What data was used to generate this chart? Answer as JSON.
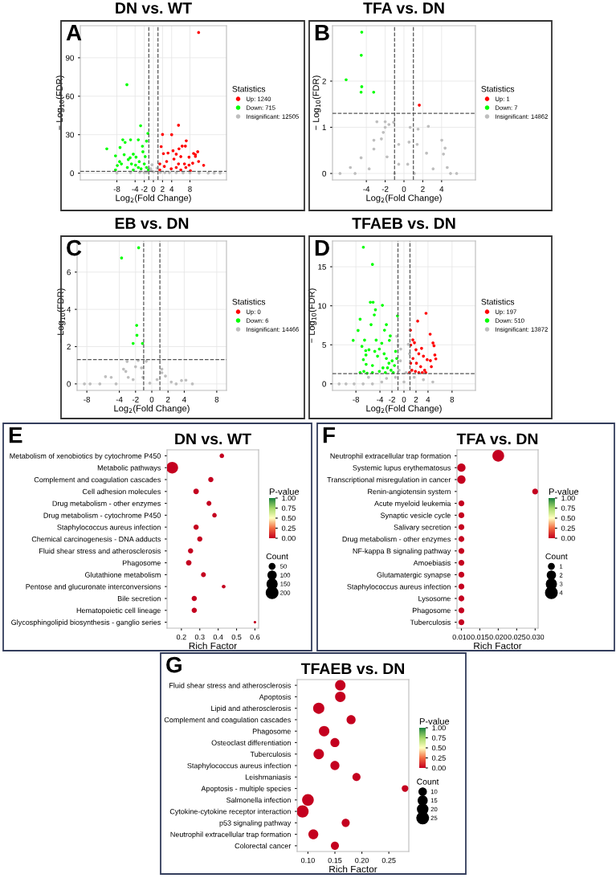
{
  "chart_data": [
    {
      "type": "scatter",
      "title": "DN vs. WT",
      "xlabel": "Log$_{2}$(Fold Change)",
      "ylabel": "− Log$_{10}$(FDR)",
      "legend_title": "Statistics",
      "legend": "right",
      "grid": true,
      "marker": "circle",
      "annotations": [
        "A"
      ],
      "xlim": [
        -16,
        16
      ],
      "ylim": [
        -5.3,
        115
      ],
      "xticks": [
        -8,
        -4,
        -2,
        0,
        2,
        4,
        8
      ],
      "yticks": [
        0,
        30,
        60,
        90
      ],
      "ref_lines": [
        {
          "axis": "x",
          "value": -1,
          "line_style": "dashed",
          "color": "#555555"
        },
        {
          "axis": "x",
          "value": 1,
          "line_style": "dashed",
          "color": "#555555"
        },
        {
          "axis": "y",
          "value": 1.3,
          "line_style": "dashed",
          "color": "#555555"
        }
      ],
      "series": [
        {
          "name": "Up: 1240",
          "color": "#ff0000",
          "x": [
            9.9,
            5.5,
            2.0,
            4.0,
            7.2,
            1.7,
            6.3,
            7.0,
            5.6,
            9.7,
            8.8,
            9.2,
            9.2,
            7.8,
            9.9,
            11.0,
            8.6,
            8.1,
            4.3,
            3.2,
            2.2,
            5.0,
            6.0,
            6.8,
            2.9,
            4.5,
            1.4,
            2.4,
            5.0,
            7.1,
            3.9,
            1.4,
            5.5,
            7.8,
            6.0
          ],
          "values": [
            109.7,
            37.4,
            30.2,
            30,
            25.2,
            20.7,
            21.1,
            21.1,
            19,
            16.7,
            15.4,
            14.4,
            13.1,
            12.5,
            9.1,
            6.1,
            7.8,
            1.9,
            17.5,
            15.7,
            15.2,
            14.8,
            12.9,
            7.2,
            9.1,
            11,
            7.2,
            5.3,
            4.4,
            4.4,
            3.4,
            2.5,
            7.2,
            6.3,
            2.5
          ]
        },
        {
          "name": "Down: 715",
          "color": "#00ff00",
          "x": [
            -5.8,
            -2.8,
            -1.2,
            -10.2,
            -6.7,
            -6.2,
            -5.0,
            -3.3,
            -1.5,
            -7.3,
            -8.3,
            -7.4,
            -7.9,
            -8.3,
            -6.4,
            -5.5,
            -4.4,
            -3.8,
            -2.4,
            -2.3,
            -3.1,
            -4.8,
            -5.7,
            -4.4,
            -2.0,
            -1.5,
            -3.3,
            -1.8,
            -1.1,
            -2.7,
            -3.9,
            -5.1,
            -7.0
          ],
          "values": [
            69,
            37,
            31,
            19,
            26,
            24,
            26,
            26,
            25,
            20,
            13.5,
            9,
            6,
            2.5,
            14.4,
            10.6,
            14.8,
            12.5,
            21,
            16.7,
            9,
            7.2,
            4.4,
            2.5,
            7.2,
            4.4,
            4.4,
            12.9,
            2.5,
            3.4,
            6.3,
            12,
            7.2
          ]
        },
        {
          "name": "Insignificant: 12505",
          "color": "#bebebe",
          "x": [
            0,
            -0.5,
            1.5,
            -3,
            5,
            8,
            10,
            12,
            13.3,
            14.6,
            -5,
            -8,
            0.8,
            -0.3,
            -0.6,
            -2,
            2.5,
            3.5,
            -1.5,
            6.5
          ],
          "values": [
            1,
            2,
            0.5,
            0.5,
            0.3,
            0.2,
            0.1,
            0.1,
            0.1,
            0.1,
            0.3,
            0.1,
            4,
            6.5,
            3.5,
            0.4,
            0.4,
            0.3,
            0.6,
            0.2
          ]
        }
      ]
    },
    {
      "type": "scatter",
      "title": "TFA vs. DN",
      "xlabel": "Log$_{2}$(Fold Change)",
      "ylabel": "− Log$_{10}$(FDR)",
      "legend_title": "Statistics",
      "legend": "right",
      "grid": true,
      "marker": "circle",
      "annotations": [
        "B"
      ],
      "xlim": [
        -7.6,
        7.6
      ],
      "ylim": [
        -0.14,
        3.2
      ],
      "xticks": [
        -4,
        -2,
        0,
        2,
        4
      ],
      "yticks": [
        0,
        1,
        2
      ],
      "ref_lines": [
        {
          "axis": "x",
          "value": -1,
          "line_style": "dashed",
          "color": "#555555"
        },
        {
          "axis": "x",
          "value": 1,
          "line_style": "dashed",
          "color": "#555555"
        },
        {
          "axis": "y",
          "value": 1.3,
          "line_style": "dashed",
          "color": "#555555"
        }
      ],
      "series": [
        {
          "name": "Up: 1",
          "color": "#ff0000",
          "x": [
            1.63
          ],
          "values": [
            1.48
          ]
        },
        {
          "name": "Down: 7",
          "color": "#00ff00",
          "x": [
            -4.49,
            -4.54,
            -6.15,
            -4.49,
            -4.56,
            -3.22
          ],
          "values": [
            3.06,
            2.56,
            2.03,
            1.88,
            1.76,
            1.76
          ]
        },
        {
          "name": "Insignificant: 14862",
          "color": "#bebebe",
          "x": [
            -2.88,
            -2.0,
            -1.1,
            -1.6,
            -2.0,
            -2.2,
            -3.2,
            -2.4,
            -3.2,
            0.66,
            1.5,
            2.59,
            4.02,
            4.37,
            4.2,
            -4.56,
            -5.7,
            -6.8,
            4.95,
            5.6,
            -0.56,
            0.54,
            1.4,
            2.4,
            -1.8,
            -0.56,
            0.4,
            -3.7,
            3.1,
            -1,
            1.1,
            -5.2,
            4.6
          ],
          "values": [
            1.12,
            1.12,
            1.11,
            1.06,
            1.0,
            0.89,
            0.72,
            0.75,
            0.53,
            1.0,
            0.96,
            1.02,
            0.72,
            0.55,
            0.42,
            0.34,
            0.13,
            0,
            0,
            0,
            0.63,
            0.68,
            0.63,
            0.44,
            0.36,
            0.2,
            0.2,
            0.1,
            0.1,
            0,
            0,
            0,
            0.13
          ]
        }
      ]
    },
    {
      "type": "scatter",
      "title": "EB vs. DN",
      "xlabel": "Log$_{2}$(Fold Change)",
      "ylabel": "− Log$_{10}$(FDR)",
      "legend_title": "Statistics",
      "legend": "right",
      "grid": true,
      "marker": "circle",
      "annotations": [
        "C"
      ],
      "xlim": [
        -9.2,
        9.2
      ],
      "ylim": [
        -0.35,
        7.67
      ],
      "xticks": [
        -8,
        -4,
        -2,
        0,
        2,
        4,
        8
      ],
      "yticks": [
        0,
        2,
        4,
        6
      ],
      "ref_lines": [
        {
          "axis": "x",
          "value": -1,
          "line_style": "dashed",
          "color": "#555555"
        },
        {
          "axis": "x",
          "value": 1,
          "line_style": "dashed",
          "color": "#555555"
        },
        {
          "axis": "y",
          "value": 1.3,
          "line_style": "dashed",
          "color": "#555555"
        }
      ],
      "series": [
        {
          "name": "Up: 0",
          "color": "#ff0000"
        },
        {
          "name": "Down: 6",
          "color": "#00ff00",
          "x": [
            -1.62,
            -3.72,
            -1.86,
            -1.83,
            -2.3,
            -1.15
          ],
          "values": [
            7.31,
            6.76,
            3.14,
            2.61,
            2.17,
            2.17
          ]
        },
        {
          "name": "Insignificant: 14466",
          "color": "#bebebe",
          "x": [
            -3.04,
            -1.68,
            -0.68,
            -3.48,
            -3.2,
            -5.7,
            -5.0,
            -2.0,
            -1.27,
            1.24,
            1.24,
            1.68,
            3.66,
            4.2,
            5.0,
            -8.3,
            -7.6,
            -6.4,
            -2.9,
            -1.1,
            0.65,
            2.4,
            3.0,
            -4.4,
            -0.24,
            -2.3
          ],
          "values": [
            1.2,
            1.26,
            1.21,
            0.79,
            0.67,
            0.39,
            0.35,
            0.92,
            0.86,
            0.79,
            0.6,
            0.42,
            0.18,
            0.2,
            0,
            0,
            0,
            0,
            0.35,
            0.35,
            0.23,
            0.1,
            0,
            0,
            0.04,
            0.23
          ]
        }
      ]
    },
    {
      "type": "scatter",
      "title": "TFAEB vs. DN",
      "xlabel": "Log$_{2}$(Fold Change)",
      "ylabel": "− Log$_{10}$(FDR)",
      "legend_title": "Statistics",
      "legend": "right",
      "grid": true,
      "marker": "circle",
      "annotations": [
        "D"
      ],
      "xlim": [
        -11.9,
        11.9
      ],
      "ylim": [
        -0.84,
        18.3
      ],
      "xticks": [
        -8,
        -4,
        -2,
        0,
        2,
        4,
        8
      ],
      "yticks": [
        0,
        5,
        10,
        15
      ],
      "ref_lines": [
        {
          "axis": "x",
          "value": -1,
          "line_style": "dashed",
          "color": "#555555"
        },
        {
          "axis": "x",
          "value": 1,
          "line_style": "dashed",
          "color": "#555555"
        },
        {
          "axis": "y",
          "value": 1.3,
          "line_style": "dashed",
          "color": "#555555"
        }
      ],
      "series": [
        {
          "name": "Up: 197",
          "color": "#ff0000",
          "x": [
            3.67,
            2.28,
            1.08,
            4.36,
            4.83,
            5.0,
            5.14,
            5.3,
            4.4,
            4.56,
            1.47,
            1.74,
            1.12,
            2.93,
            2.0,
            2.47,
            3.24,
            3.86,
            1.5,
            2.08,
            2.78,
            3.44,
            1.31,
            1.9,
            3.05,
            3.63,
            2.47,
            1.12,
            0.93
          ],
          "values": [
            9.04,
            8.04,
            6.87,
            6.36,
            5.24,
            4.88,
            3.7,
            3.2,
            2.98,
            2.2,
            5.63,
            5.27,
            4.97,
            4.55,
            4.37,
            3.86,
            3.55,
            3.1,
            3.25,
            2.65,
            2.2,
            1.75,
            1.75,
            1.6,
            1.45,
            1.45,
            1.45,
            2.65,
            1.45
          ]
        },
        {
          "name": "Down: 510",
          "color": "#00ff00",
          "x": [
            -6.76,
            -5.25,
            -5.6,
            -5.14,
            -4.75,
            -4.94,
            -3.59,
            -1.08,
            -7.3,
            -5.48,
            -2.93,
            -7.64,
            -3.24,
            -2.28,
            -8.46,
            -6.56,
            -4.63,
            -2.43,
            -7.0,
            -3.7,
            -5.83,
            -6.37,
            -6.33,
            -6.76,
            -6.3,
            -7.3,
            -6.68,
            -6.14,
            -5.25,
            -4.86,
            -4.4,
            -4.1,
            -3.3,
            -2.93,
            -2.5,
            -2.16,
            -1.58,
            -1.2,
            -3.5,
            -1.78,
            -1.39,
            -3.1,
            -4.1,
            -5.25,
            -2.74,
            -1.97
          ],
          "values": [
            17.5,
            15.3,
            10.45,
            10.45,
            9.49,
            8.83,
            10.06,
            8.7,
            8.28,
            7.59,
            7.59,
            6.84,
            6.87,
            6.14,
            5.57,
            5.6,
            5.6,
            5.57,
            4.8,
            5.2,
            4.37,
            4.25,
            3.7,
            3.1,
            2.5,
            1.45,
            1.6,
            1.36,
            2.35,
            4.16,
            3.55,
            4.46,
            3.86,
            3.25,
            2.65,
            1.75,
            2.35,
            3.25,
            2.05,
            1.45,
            4.16,
            1.45,
            1.6,
            1.45,
            2.05,
            2.95
          ]
        },
        {
          "name": "Insignificant: 13872",
          "color": "#bebebe",
          "x": [
            -10.8,
            -9.65,
            -8.3,
            -6.8,
            -5.25,
            -3.7,
            -5.9,
            -2.9,
            -1.4,
            -0.81,
            -0.6,
            -0.54,
            0.73,
            0.93,
            0.35,
            0,
            1.7,
            3.24,
            4.8,
            -1.0,
            -1.2
          ],
          "values": [
            0,
            0,
            0,
            0,
            0,
            0.24,
            0.84,
            0.7,
            0.84,
            1.75,
            2.95,
            4.46,
            5.06,
            3.86,
            1.45,
            0.24,
            0.84,
            0.54,
            0.24,
            4.97,
            6.1
          ]
        }
      ]
    },
    {
      "type": "bubble",
      "orientation": "horizontal",
      "title": "DN vs. WT",
      "xlabel": "Rich Factor",
      "clabel": "P-value",
      "legend_title": "Count",
      "annotations": [
        "E"
      ],
      "categories": [
        "Metabolism of xenobiotics by cytochrome P450",
        "Metabolic pathways",
        "Complement and coagulation cascades",
        "Cell adhesion molecules",
        "Drug metabolism - other enzymes",
        "Drug metabolism - cytochrome P450",
        "Staphylococcus aureus infection",
        "Chemical carcinogenesis - DNA adducts",
        "Fluid shear stress and atherosclerosis",
        "Phagosome",
        "Glutathione metabolism",
        "Pentose and glucuronate interconversions",
        "Bile secretion",
        "Hematopoietic cell lineage",
        "Glycosphingolipid biosynthesis - ganglio series"
      ],
      "values": [
        0.42,
        0.15,
        0.36,
        0.28,
        0.35,
        0.38,
        0.28,
        0.3,
        0.25,
        0.24,
        0.32,
        0.43,
        0.27,
        0.27,
        0.6
      ],
      "sizes": [
        30,
        200,
        40,
        45,
        35,
        30,
        40,
        40,
        40,
        45,
        35,
        20,
        40,
        40,
        10
      ],
      "size_legend": [
        50,
        100,
        150,
        200
      ],
      "cvalues": [
        0,
        0,
        0,
        0,
        0,
        0,
        0,
        0,
        0,
        0,
        0,
        0,
        0,
        0,
        0
      ],
      "clim": [
        0,
        1
      ],
      "cticks": [
        {
          "value": 0,
          "label": "0.00"
        },
        {
          "value": 0.25,
          "label": "0.25"
        },
        {
          "value": 0.5,
          "label": "0.50"
        },
        {
          "value": 0.75,
          "label": "0.75"
        },
        {
          "value": 1,
          "label": "1.00"
        }
      ],
      "xlim": [
        0.122,
        0.62
      ],
      "xticks": [
        0.2,
        0.3,
        0.4,
        0.5,
        0.6
      ]
    },
    {
      "type": "bubble",
      "orientation": "horizontal",
      "title": "TFA vs. DN",
      "xlabel": "Rich Factor",
      "clabel": "P-value",
      "legend_title": "Count",
      "annotations": [
        "F"
      ],
      "categories": [
        "Neutrophil extracellular trap formation",
        "Systemic lupus erythematosus",
        "Transcriptional misregulation in cancer",
        "Renin-angiotensin system",
        "Acute myeloid leukemia",
        "Synaptic vesicle cycle",
        "Salivary secretion",
        "Drug metabolism - other enzymes",
        "NF-kappa B signaling pathway",
        "Amoebiasis",
        "Glutamatergic synapse",
        "Staphylococcus aureus infection",
        "Lysosome",
        "Phagosome",
        "Tuberculosis"
      ],
      "values": [
        0.02,
        0.01,
        0.01,
        0.03,
        0.01,
        0.01,
        0.01,
        0.01,
        0.01,
        0.01,
        0.01,
        0.01,
        0.01,
        0.01,
        0.01
      ],
      "sizes": [
        4,
        2,
        2,
        1,
        1,
        1,
        1,
        1,
        1,
        1,
        1,
        1,
        1,
        1,
        1
      ],
      "size_legend": [
        1,
        2,
        3,
        4
      ],
      "cvalues": [
        0,
        0,
        0,
        0,
        0,
        0,
        0,
        0,
        0,
        0,
        0,
        0,
        0,
        0,
        0
      ],
      "clim": [
        0,
        1
      ],
      "cticks": [
        {
          "value": 0,
          "label": "0.00"
        },
        {
          "value": 0.25,
          "label": "0.25"
        },
        {
          "value": 0.5,
          "label": "0.50"
        },
        {
          "value": 0.75,
          "label": "0.75"
        },
        {
          "value": 1,
          "label": "1.00"
        }
      ],
      "xlim": [
        0.0088,
        0.0308
      ],
      "xticks": [
        {
          "value": 0.01,
          "label": "0.010"
        },
        {
          "value": 0.015,
          "label": "0.015"
        },
        {
          "value": 0.02,
          "label": "0.020"
        },
        {
          "value": 0.025,
          "label": "0.025"
        },
        {
          "value": 0.03,
          "label": "0.030"
        }
      ]
    },
    {
      "type": "bubble",
      "orientation": "horizontal",
      "title": "TFAEB vs. DN",
      "xlabel": "Rich Factor",
      "clabel": "P-value",
      "legend_title": "Count",
      "annotations": [
        "G"
      ],
      "categories": [
        "Fluid shear stress and atherosclerosis",
        "Apoptosis",
        "Lipid and atherosclerosis",
        "Complement and coagulation cascades",
        "Phagosome",
        "Osteoclast differentiation",
        "Tuberculosis",
        "Staphylococcus aureus infection",
        "Leishmaniasis",
        "Apoptosis - multiple species",
        "Salmonella infection",
        "Cytokine-cytokine receptor interaction",
        "p53 signaling pathway",
        "Neutrophil extracellular trap formation",
        "Colorectal cancer"
      ],
      "values": [
        0.16,
        0.16,
        0.12,
        0.18,
        0.13,
        0.15,
        0.12,
        0.15,
        0.19,
        0.28,
        0.1,
        0.09,
        0.17,
        0.11,
        0.15
      ],
      "sizes": [
        20,
        20,
        23,
        15,
        20,
        15,
        20,
        15,
        12,
        8,
        25,
        27,
        12,
        18,
        12
      ],
      "size_legend": [
        10,
        15,
        20,
        25
      ],
      "cvalues": [
        0,
        0,
        0,
        0,
        0,
        0,
        0,
        0,
        0,
        0,
        0,
        0,
        0,
        0,
        0
      ],
      "clim": [
        0,
        1
      ],
      "cticks": [
        {
          "value": 0,
          "label": "0.00"
        },
        {
          "value": 0.25,
          "label": "0.25"
        },
        {
          "value": 0.5,
          "label": "0.50"
        },
        {
          "value": 0.75,
          "label": "0.75"
        },
        {
          "value": 1,
          "label": "1.00"
        }
      ],
      "xlim": [
        0.08,
        0.287
      ],
      "xticks": [
        {
          "value": 0.1,
          "label": "0.10"
        },
        {
          "value": 0.15,
          "label": "0.15"
        },
        {
          "value": 0.2,
          "label": "0.20"
        },
        {
          "value": 0.25,
          "label": "0.25"
        }
      ]
    }
  ]
}
